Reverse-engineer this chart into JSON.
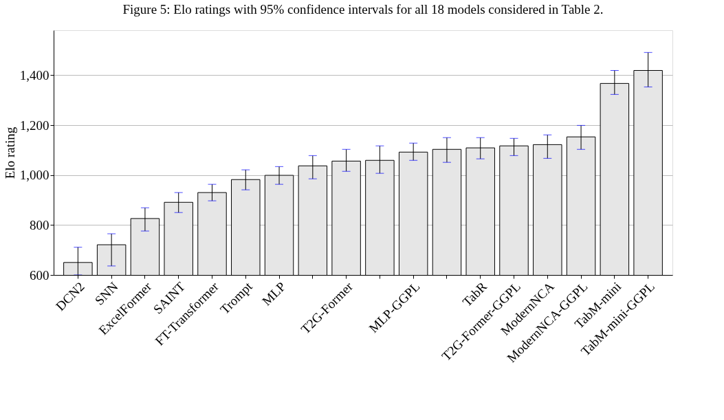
{
  "chart_data": {
    "type": "bar",
    "title": "Figure 5: Elo ratings with 95% confidence intervals for all 18 models considered in Table 2.",
    "ylabel": "Elo rating",
    "categories": [
      "DCN2",
      "SNN",
      "ExcelFormer",
      "SAINT",
      "FT-Transformer",
      "Trompt",
      "MLP",
      null,
      "T2G-Former",
      null,
      "MLP-GGPL",
      null,
      "TabR",
      "T2G-Former-GGPL",
      "ModernNCA",
      "ModernNCA-GGPL",
      "TabM-mini",
      "TabM-mini-GGPL"
    ],
    "values": [
      650,
      721,
      826,
      891,
      930,
      982,
      999,
      1037,
      1056,
      1059,
      1092,
      1103,
      1109,
      1117,
      1122,
      1153,
      1367,
      1419
    ],
    "errors": [
      [
        600,
        711
      ],
      [
        636,
        765
      ],
      [
        776,
        869
      ],
      [
        850,
        930
      ],
      [
        897,
        963
      ],
      [
        941,
        1021
      ],
      [
        963,
        1034
      ],
      [
        985,
        1078
      ],
      [
        1015,
        1103
      ],
      [
        1007,
        1117
      ],
      [
        1059,
        1128
      ],
      [
        1051,
        1150
      ],
      [
        1065,
        1150
      ],
      [
        1078,
        1147
      ],
      [
        1067,
        1161
      ],
      [
        1103,
        1199
      ],
      [
        1323,
        1419
      ],
      [
        1353,
        1491
      ]
    ],
    "color": "#e6e6e6",
    "ylim": [
      600,
      1580
    ],
    "yticks": [
      600,
      800,
      {
        "value": 1000,
        "label": "1,000"
      },
      {
        "value": 1200,
        "label": "1,200"
      },
      {
        "value": 1400,
        "label": "1,400"
      }
    ],
    "grid": "y"
  }
}
